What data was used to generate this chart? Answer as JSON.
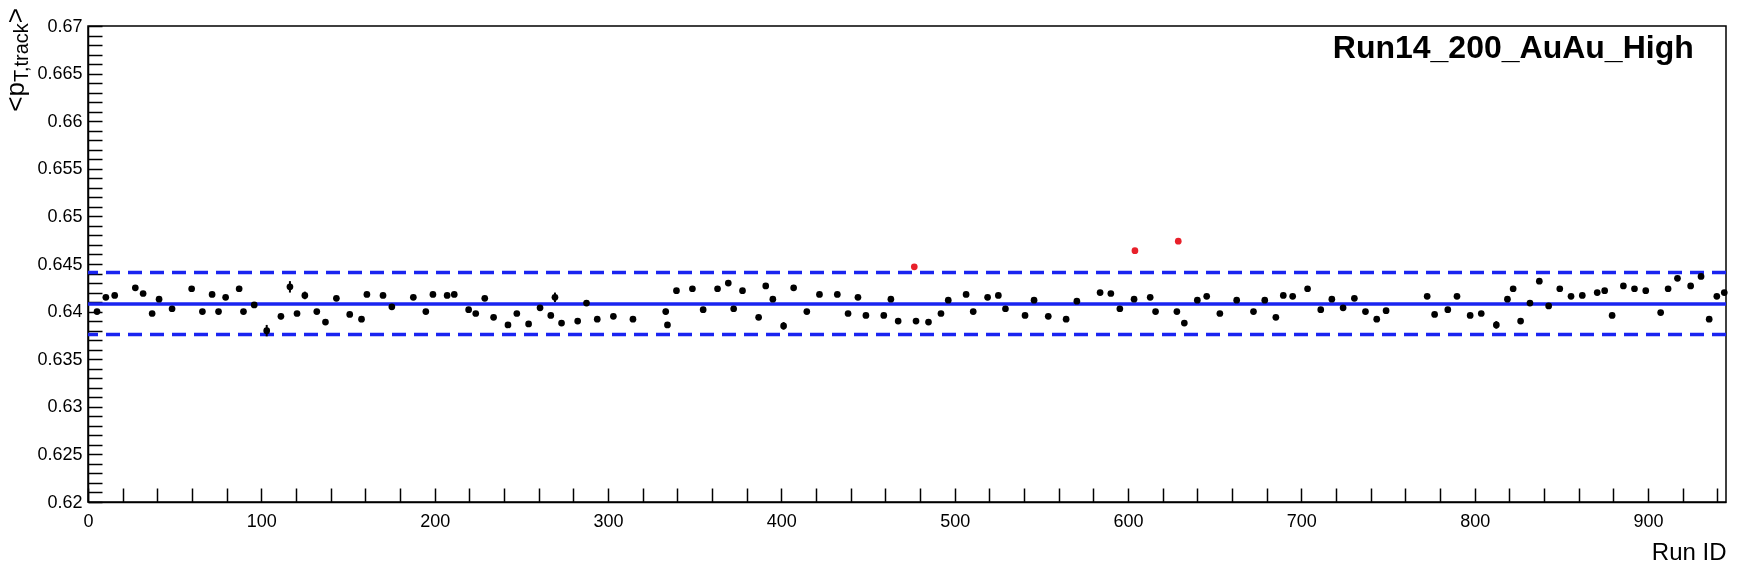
{
  "chart_data": {
    "type": "scatter",
    "title": "Run14_200_AuAu_High",
    "xlabel": "Run ID",
    "ylabel": "<p$_{T,track}$>",
    "marker": "circle",
    "grid": false,
    "xlim": [
      0,
      945
    ],
    "xticks": [
      0,
      {
        "value": 20,
        "label": null
      },
      {
        "value": 40,
        "label": null
      },
      {
        "value": 60,
        "label": null
      },
      {
        "value": 80,
        "label": null
      },
      100,
      {
        "value": 120,
        "label": null
      },
      {
        "value": 140,
        "label": null
      },
      {
        "value": 160,
        "label": null
      },
      {
        "value": 180,
        "label": null
      },
      200,
      {
        "value": 220,
        "label": null
      },
      {
        "value": 240,
        "label": null
      },
      {
        "value": 260,
        "label": null
      },
      {
        "value": 280,
        "label": null
      },
      300,
      {
        "value": 320,
        "label": null
      },
      {
        "value": 340,
        "label": null
      },
      {
        "value": 360,
        "label": null
      },
      {
        "value": 380,
        "label": null
      },
      400,
      {
        "value": 420,
        "label": null
      },
      {
        "value": 440,
        "label": null
      },
      {
        "value": 460,
        "label": null
      },
      {
        "value": 480,
        "label": null
      },
      500,
      {
        "value": 520,
        "label": null
      },
      {
        "value": 540,
        "label": null
      },
      {
        "value": 560,
        "label": null
      },
      {
        "value": 580,
        "label": null
      },
      600,
      {
        "value": 620,
        "label": null
      },
      {
        "value": 640,
        "label": null
      },
      {
        "value": 660,
        "label": null
      },
      {
        "value": 680,
        "label": null
      },
      700,
      {
        "value": 720,
        "label": null
      },
      {
        "value": 740,
        "label": null
      },
      {
        "value": 760,
        "label": null
      },
      {
        "value": 780,
        "label": null
      },
      800,
      {
        "value": 820,
        "label": null
      },
      {
        "value": 840,
        "label": null
      },
      {
        "value": 860,
        "label": null
      },
      {
        "value": 880,
        "label": null
      },
      900,
      {
        "value": 920,
        "label": null
      },
      {
        "value": 940,
        "label": null
      }
    ],
    "ylim": [
      0.62,
      0.67
    ],
    "yticks": [
      0.62,
      {
        "value": 0.621,
        "label": null
      },
      {
        "value": 0.622,
        "label": null
      },
      {
        "value": 0.623,
        "label": null
      },
      {
        "value": 0.624,
        "label": null
      },
      0.625,
      {
        "value": 0.626,
        "label": null
      },
      {
        "value": 0.627,
        "label": null
      },
      {
        "value": 0.628,
        "label": null
      },
      {
        "value": 0.629,
        "label": null
      },
      0.63,
      {
        "value": 0.631,
        "label": null
      },
      {
        "value": 0.632,
        "label": null
      },
      {
        "value": 0.633,
        "label": null
      },
      {
        "value": 0.634,
        "label": null
      },
      0.635,
      {
        "value": 0.636,
        "label": null
      },
      {
        "value": 0.637,
        "label": null
      },
      {
        "value": 0.638,
        "label": null
      },
      {
        "value": 0.639,
        "label": null
      },
      0.64,
      {
        "value": 0.641,
        "label": null
      },
      {
        "value": 0.642,
        "label": null
      },
      {
        "value": 0.643,
        "label": null
      },
      {
        "value": 0.644,
        "label": null
      },
      0.645,
      {
        "value": 0.646,
        "label": null
      },
      {
        "value": 0.647,
        "label": null
      },
      {
        "value": 0.648,
        "label": null
      },
      {
        "value": 0.649,
        "label": null
      },
      0.65,
      {
        "value": 0.651,
        "label": null
      },
      {
        "value": 0.652,
        "label": null
      },
      {
        "value": 0.653,
        "label": null
      },
      {
        "value": 0.654,
        "label": null
      },
      0.655,
      {
        "value": 0.656,
        "label": null
      },
      {
        "value": 0.657,
        "label": null
      },
      {
        "value": 0.658,
        "label": null
      },
      {
        "value": 0.659,
        "label": null
      },
      0.66,
      {
        "value": 0.661,
        "label": null
      },
      {
        "value": 0.662,
        "label": null
      },
      {
        "value": 0.663,
        "label": null
      },
      {
        "value": 0.664,
        "label": null
      },
      0.665,
      {
        "value": 0.666,
        "label": null
      },
      {
        "value": 0.667,
        "label": null
      },
      {
        "value": 0.668,
        "label": null
      },
      {
        "value": 0.669,
        "label": null
      },
      0.67
    ],
    "ref_lines": [
      {
        "axis": "y",
        "value": 0.6408,
        "color": "#1a24f0",
        "line_style": "solid"
      },
      {
        "axis": "y",
        "value": 0.6441,
        "color": "#1a24f0",
        "line_style": "dashed"
      },
      {
        "axis": "y",
        "value": 0.6376,
        "color": "#1a24f0",
        "line_style": "dashed"
      }
    ],
    "series": [
      {
        "color": "#000000",
        "x": [
          5.2,
          10.3,
          15.4,
          27.3,
          31.8,
          37,
          41,
          48.5,
          59.8,
          66,
          71.6,
          75.3,
          79.4,
          87.2,
          89.7,
          95.9,
          103.1,
          111.3,
          116.5,
          120.6,
          125.1,
          132,
          137,
          143.3,
          151,
          157.8,
          160.9,
          170.2,
          175.3,
          187.7,
          194.9,
          199,
          207.2,
          211.3,
          219.6,
          223.7,
          228.9,
          234,
          242.3,
          247.4,
          254.2,
          260.8,
          267,
          269.4,
          273.2,
          282.5,
          287.6,
          293.8,
          303.1,
          314.4,
          333.3,
          334.3,
          339.5,
          348.7,
          354.9,
          363.2,
          369.4,
          372.5,
          377.6,
          386.9,
          391,
          395.1,
          401.3,
          407.1,
          414.7,
          422,
          432.3,
          438.5,
          444.2,
          448.8,
          459.1,
          463.2,
          467.4,
          477.7,
          484.9,
          492.1,
          496.3,
          506.6,
          510.7,
          519,
          525.2,
          529.3,
          540.6,
          545.8,
          554,
          564.3,
          570.5,
          583.9,
          590.1,
          595.3,
          603.5,
          612.8,
          615.9,
          628.2,
          632.5,
          640,
          645.4,
          653,
          662.7,
          672.4,
          678.9,
          685.3,
          689.6,
          695,
          703.6,
          711.2,
          717.6,
          724.1,
          730.6,
          737,
          743.5,
          748.9,
          772.6,
          776.9,
          784.5,
          789.8,
          797.4,
          803.8,
          812.5,
          818.9,
          822.2,
          826.5,
          831.9,
          837.3,
          842.7,
          849.1,
          855.6,
          862.1,
          870.7,
          875,
          879.3,
          885.8,
          892.2,
          898.7,
          907.3,
          911.6,
          917,
          924.6,
          930.6,
          935.3,
          939.7,
          944
        ],
        "values": [
          0.64,
          0.6415,
          0.6417,
          0.6425,
          0.6419,
          0.6398,
          0.6413,
          0.6403,
          0.6424,
          0.64,
          0.6418,
          0.64,
          0.6415,
          0.6424,
          0.64,
          0.6407,
          0.638,
          0.6395,
          0.6426,
          0.6398,
          0.6417,
          0.64,
          0.6389,
          0.6414,
          0.6397,
          0.6392,
          0.6418,
          0.6417,
          0.6405,
          0.6415,
          0.64,
          0.6418,
          0.6417,
          0.6418,
          0.6402,
          0.6398,
          0.6414,
          0.6394,
          0.6386,
          0.6398,
          0.6387,
          0.6404,
          0.6396,
          0.6415,
          0.6388,
          0.639,
          0.6409,
          0.6392,
          0.6395,
          0.6392,
          0.64,
          0.6386,
          0.6422,
          0.6424,
          0.6402,
          0.6424,
          0.643,
          0.6403,
          0.6422,
          0.6394,
          0.6427,
          0.6413,
          0.6385,
          0.6425,
          0.64,
          0.6418,
          0.6418,
          0.6398,
          0.6415,
          0.6396,
          0.6396,
          0.6413,
          0.639,
          0.639,
          0.6389,
          0.6398,
          0.6412,
          0.6418,
          0.64,
          0.6415,
          0.6417,
          0.6403,
          0.6396,
          0.6412,
          0.6395,
          0.6392,
          0.6411,
          0.642,
          0.6419,
          0.6403,
          0.6413,
          0.6415,
          0.64,
          0.64,
          0.6388,
          0.6412,
          0.6416,
          0.6398,
          0.6412,
          0.64,
          0.6412,
          0.6394,
          0.6417,
          0.6416,
          0.6424,
          0.6402,
          0.6413,
          0.6404,
          0.6414,
          0.64,
          0.6392,
          0.6401,
          0.6416,
          0.6397,
          0.6402,
          0.6416,
          0.6396,
          0.6398,
          0.6386,
          0.6413,
          0.6424,
          0.639,
          0.6409,
          0.6432,
          0.6406,
          0.6424,
          0.6416,
          0.6417,
          0.642,
          0.6422,
          0.6396,
          0.6427,
          0.6424,
          0.6422,
          0.6399,
          0.6424,
          0.6435,
          0.6427,
          0.6437,
          0.6392,
          0.6416,
          0.642
        ],
        "errors": [
          0.0002,
          null,
          null,
          null,
          null,
          null,
          null,
          null,
          null,
          null,
          null,
          null,
          null,
          0.0003,
          null,
          null,
          0.0006,
          0.0003,
          0.0006,
          null,
          0.0004,
          null,
          null,
          null,
          null,
          0.0003,
          null,
          null,
          null,
          null,
          null,
          null,
          null,
          null,
          null,
          null,
          null,
          null,
          null,
          null,
          null,
          null,
          null,
          0.0005,
          null,
          null,
          null,
          null,
          null,
          null,
          0.0003,
          0.0003,
          null,
          null,
          null,
          null,
          null,
          null,
          null,
          null,
          null,
          null,
          0.0004,
          0.0003,
          null,
          null,
          null,
          null,
          null,
          null,
          null,
          null,
          null,
          null,
          null,
          null,
          null,
          null,
          null,
          null,
          null,
          null,
          null,
          null,
          null,
          null,
          null,
          null,
          null,
          null,
          null,
          null,
          null,
          null,
          null,
          null,
          null,
          null,
          null,
          null,
          null,
          null,
          null,
          null,
          null,
          null,
          null,
          null,
          null,
          null,
          null,
          null,
          null,
          null,
          null,
          null,
          null,
          null,
          0.0004,
          null,
          null,
          0.0003,
          null,
          null,
          null,
          null,
          null,
          null,
          null,
          null,
          null,
          null,
          null,
          null,
          null,
          null,
          null,
          null,
          null,
          null,
          null,
          null
        ]
      },
      {
        "color": "#e8202a",
        "x": [
          476.7,
          604,
          629
        ],
        "values": [
          0.6447,
          0.6464,
          0.6474
        ]
      }
    ]
  }
}
